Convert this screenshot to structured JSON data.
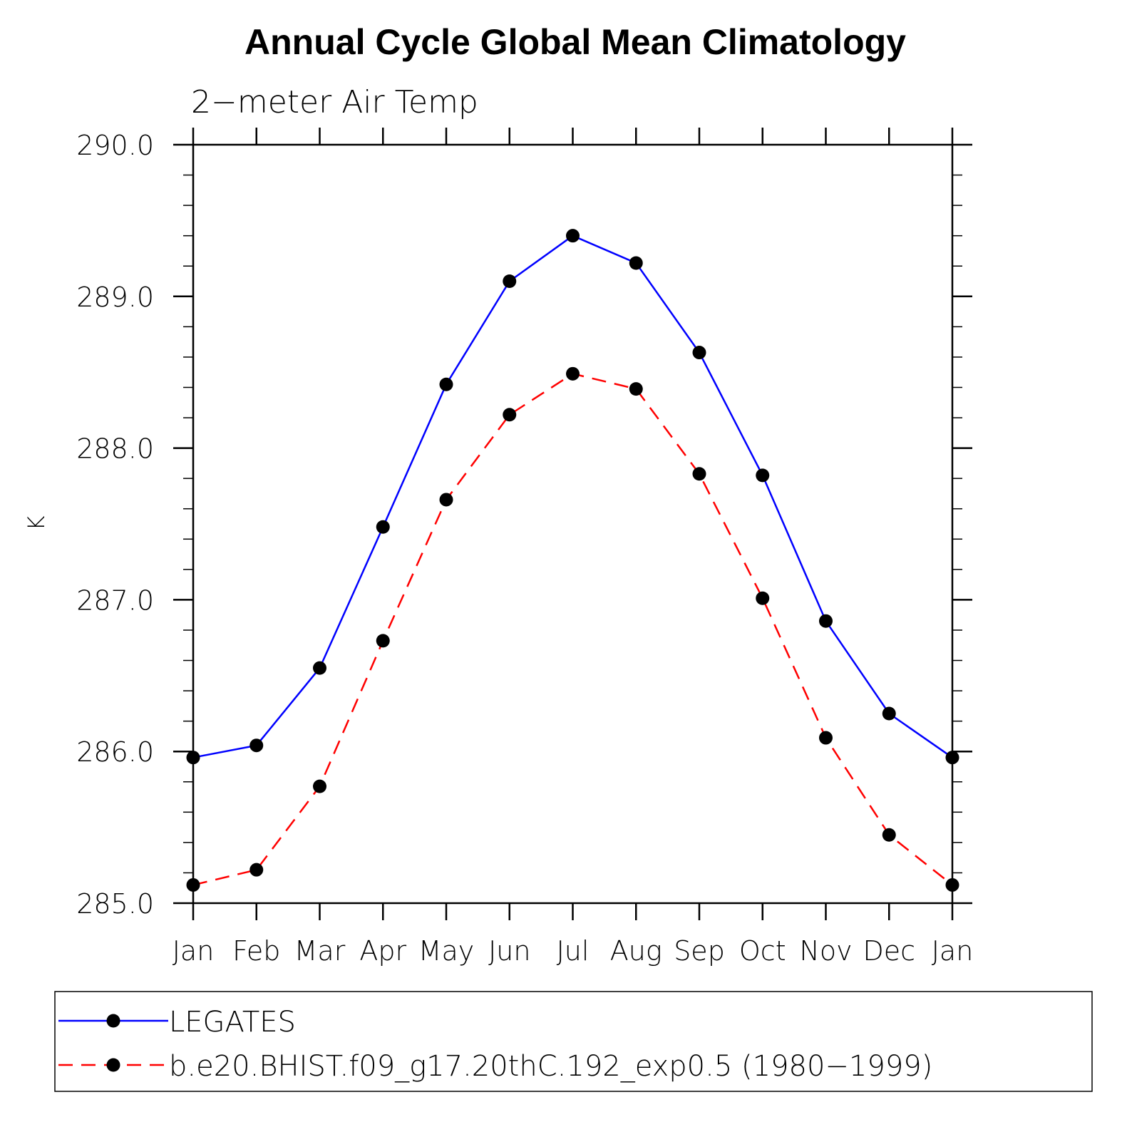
{
  "chart_data": {
    "type": "line",
    "title": "Annual Cycle Global Mean Climatology",
    "subtitle": "2−meter Air Temp",
    "ylabel": "K",
    "xlabel": "",
    "categories": [
      "Jan",
      "Feb",
      "Mar",
      "Apr",
      "May",
      "Jun",
      "Jul",
      "Aug",
      "Sep",
      "Oct",
      "Nov",
      "Dec",
      "Jan"
    ],
    "ylim": [
      285.0,
      290.0
    ],
    "yticks": [
      "285.0",
      "286.0",
      "287.0",
      "288.0",
      "289.0",
      "290.0"
    ],
    "grid": false,
    "legend_position": "bottom",
    "series": [
      {
        "name": "LEGATES",
        "color": "#0000ff",
        "dash": "solid",
        "marker": "filled-circle",
        "values": [
          285.96,
          286.04,
          286.55,
          287.48,
          288.42,
          289.1,
          289.4,
          289.22,
          288.63,
          287.82,
          286.86,
          286.25,
          285.96
        ]
      },
      {
        "name": "b.e20.BHIST.f09_g17.20thC.192_exp0.5 (1980−1999)",
        "color": "#ff0000",
        "dash": "dashed",
        "marker": "filled-circle",
        "values": [
          285.12,
          285.22,
          285.77,
          286.73,
          287.66,
          288.22,
          288.49,
          288.39,
          287.83,
          287.01,
          286.09,
          285.45,
          285.12
        ]
      }
    ]
  }
}
